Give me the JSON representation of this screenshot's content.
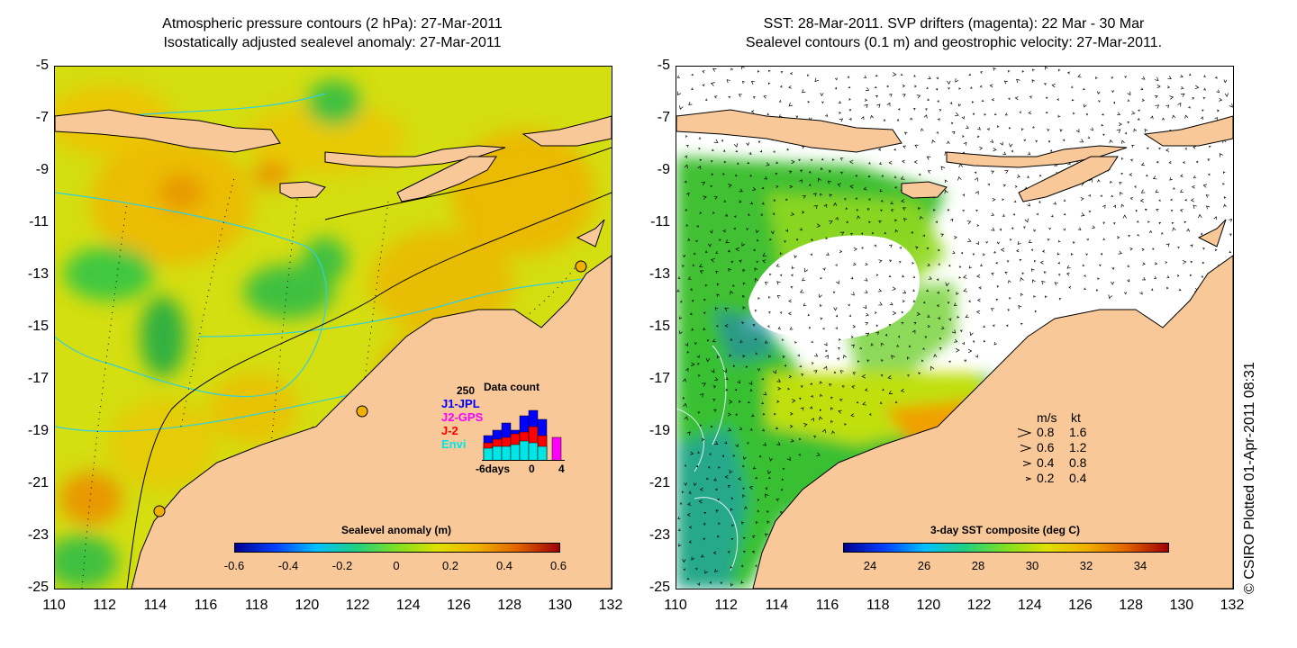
{
  "left_panel": {
    "title_line1": "Atmospheric pressure contours (2 hPa): 27-Mar-2011",
    "title_line2": "Isostatically adjusted sealevel anomaly: 27-Mar-2011",
    "colorbar": {
      "title": "Sealevel anomaly (m)",
      "ticks": [
        "-0.6",
        "-0.4",
        "-0.2",
        "0",
        "0.2",
        "0.4",
        "0.6"
      ],
      "range": [
        -0.6,
        0.6
      ]
    },
    "data_count": {
      "title": "Data count",
      "max_label": "250",
      "legend": [
        {
          "name": "J1-JPL",
          "color": "#0000ff"
        },
        {
          "name": "J2-GPS",
          "color": "#ff00ff"
        },
        {
          "name": "J-2",
          "color": "#ff0000"
        },
        {
          "name": "Envi",
          "color": "#00e5e5"
        }
      ],
      "x_labels": [
        "-6days",
        "0",
        "4"
      ]
    }
  },
  "right_panel": {
    "title_line1": "SST: 28-Mar-2011. SVP drifters (magenta): 22 Mar - 30 Mar",
    "title_line2": "Sealevel contours (0.1 m) and geostrophic velocity: 27-Mar-2011.",
    "colorbar": {
      "title": "3-day SST composite (deg C)",
      "ticks": [
        "24",
        "26",
        "28",
        "30",
        "32",
        "34"
      ],
      "range": [
        23,
        35
      ]
    },
    "speed_legend": {
      "header_ms": "m/s",
      "header_kt": "kt",
      "rows": [
        {
          "ms": "0.8",
          "kt": "1.6"
        },
        {
          "ms": "0.6",
          "kt": "1.2"
        },
        {
          "ms": "0.4",
          "kt": "0.8"
        },
        {
          "ms": "0.2",
          "kt": "0.4"
        }
      ]
    }
  },
  "axes": {
    "lat_ticks": [
      "-5",
      "-7",
      "-9",
      "-11",
      "-13",
      "-15",
      "-17",
      "-19",
      "-21",
      "-23",
      "-25"
    ],
    "lon_ticks": [
      "110",
      "112",
      "114",
      "116",
      "118",
      "120",
      "122",
      "124",
      "126",
      "128",
      "130",
      "132"
    ],
    "lat_range": [
      -25,
      -5
    ],
    "lon_range": [
      110,
      132
    ]
  },
  "credit": "© CSIRO Plotted 01-Apr-2011 08:31",
  "colors": {
    "land": "#f9c898",
    "anomaly_base": "#d8e000",
    "anomaly_high": "#f0a800",
    "anomaly_low": "#30c040",
    "sst_green": "#40c830",
    "sst_yellow": "#d0e000",
    "sst_orange": "#f09000",
    "contour_cyan": "#30d0e0"
  }
}
